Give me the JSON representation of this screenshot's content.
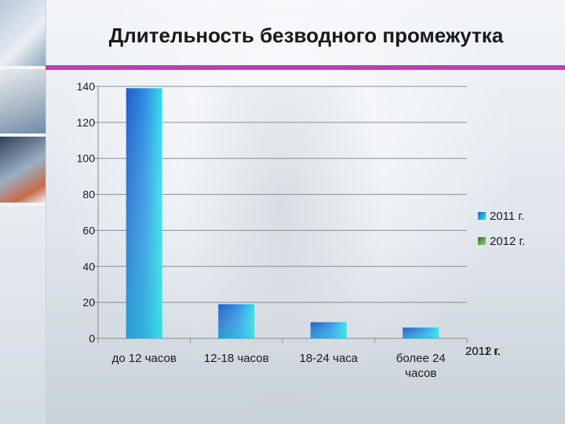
{
  "slide": {
    "title": "Длительность безводного промежутка"
  },
  "colors": {
    "accent_bar": "#c23bb5",
    "series_2011": "#1f6fd6",
    "series_2011_light": "#29d6e8",
    "series_2012": "#3f8f3a"
  },
  "chart_data": {
    "type": "bar",
    "categories": [
      "до 12 часов",
      "12-18 часов",
      "18-24 часа",
      "более 24 часов"
    ],
    "series": [
      {
        "name": "2011 г.",
        "values": [
          139,
          19,
          9,
          6
        ]
      },
      {
        "name": "2012 г.",
        "values": [
          0,
          0,
          0,
          0
        ]
      }
    ],
    "ylim": [
      0,
      140
    ],
    "yticks": [
      0,
      20,
      40,
      60,
      80,
      100,
      120,
      140
    ],
    "grid": true,
    "legend": "right",
    "overlap_label": "2012 г."
  }
}
